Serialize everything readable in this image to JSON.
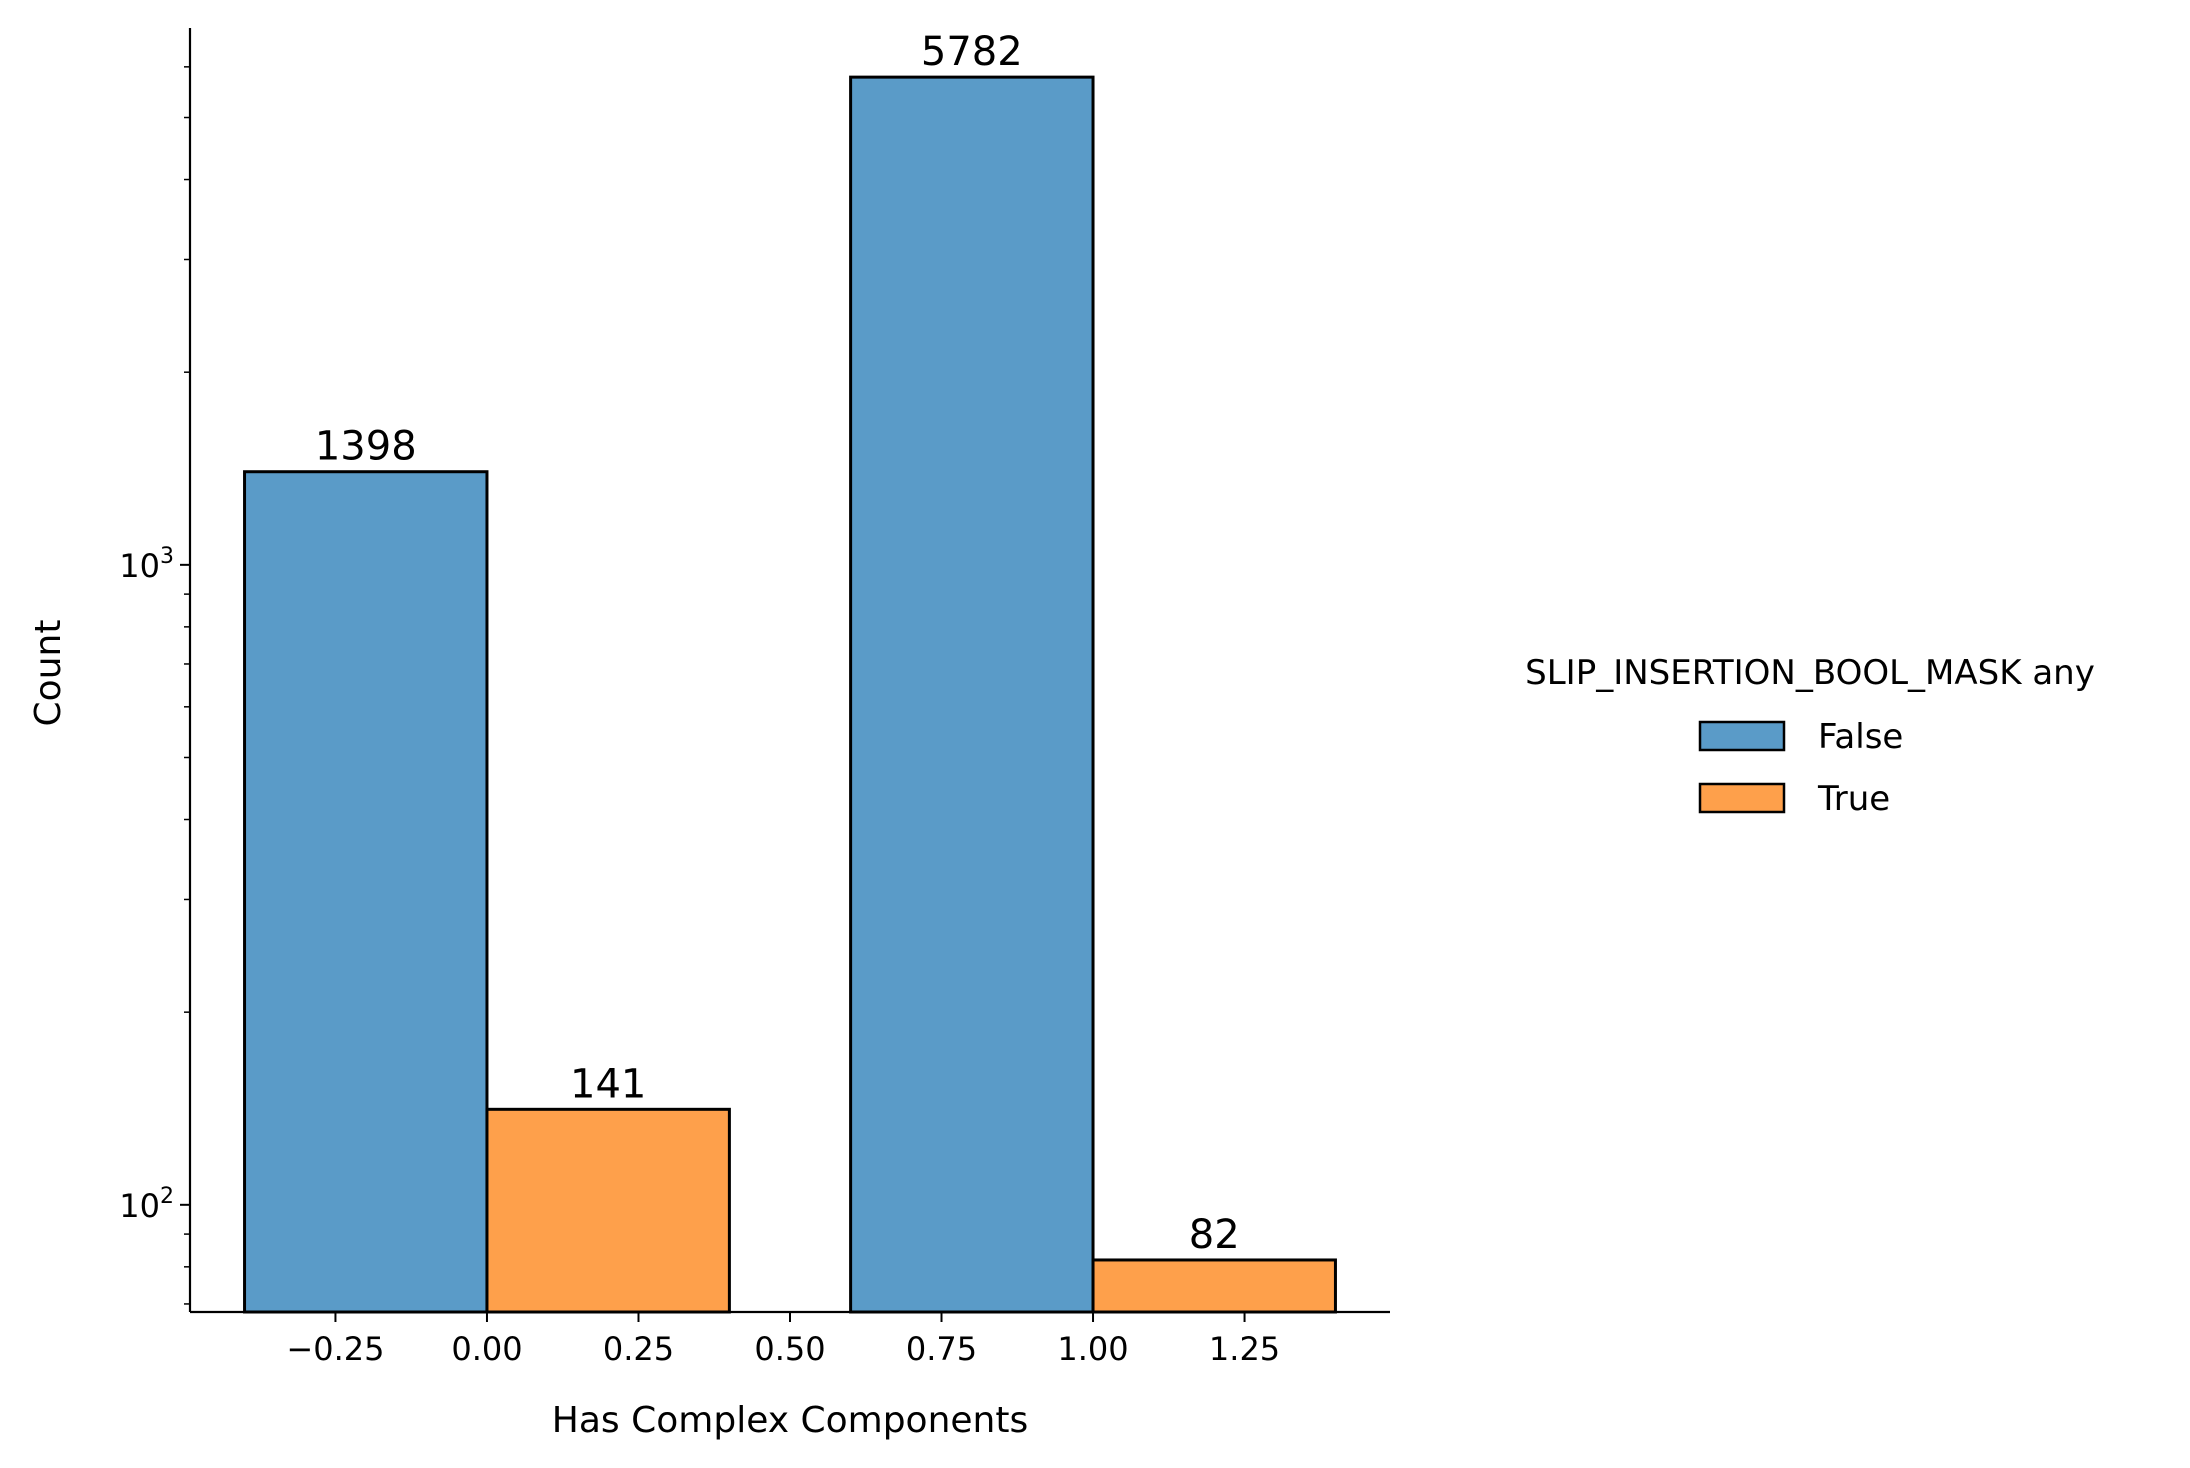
{
  "chart_data": {
    "type": "bar",
    "title": "",
    "xlabel": "Has Complex Components",
    "ylabel": "Count",
    "yscale": "log",
    "ylim": [
      68,
      6900
    ],
    "xlim": [
      -0.49,
      1.49
    ],
    "grid": false,
    "x_ticks": [
      -0.25,
      0.0,
      0.25,
      0.5,
      0.75,
      1.0,
      1.25
    ],
    "x_tick_labels": [
      "−0.25",
      "0.00",
      "0.25",
      "0.50",
      "0.75",
      "1.00",
      "1.25"
    ],
    "y_major_ticks": [
      100,
      1000
    ],
    "y_tick_labels": [
      {
        "base": "10",
        "exp": "2"
      },
      {
        "base": "10",
        "exp": "3"
      }
    ],
    "legend": {
      "title": "SLIP_INSERTION_BOOL_MASK any",
      "placement": "right, outside"
    },
    "series": [
      {
        "name": "False",
        "color": "#5a9bc8",
        "bars": [
          {
            "x_start": -0.4,
            "x_end": 0.0,
            "value": 1398
          },
          {
            "x_start": 0.6,
            "x_end": 1.0,
            "value": 5782
          }
        ]
      },
      {
        "name": "True",
        "color": "#fea04b",
        "bars": [
          {
            "x_start": 0.0,
            "x_end": 0.4,
            "value": 141
          },
          {
            "x_start": 1.0,
            "x_end": 1.4,
            "value": 82
          }
        ]
      }
    ],
    "data_labels": [
      "1398",
      "5782",
      "141",
      "82"
    ]
  }
}
